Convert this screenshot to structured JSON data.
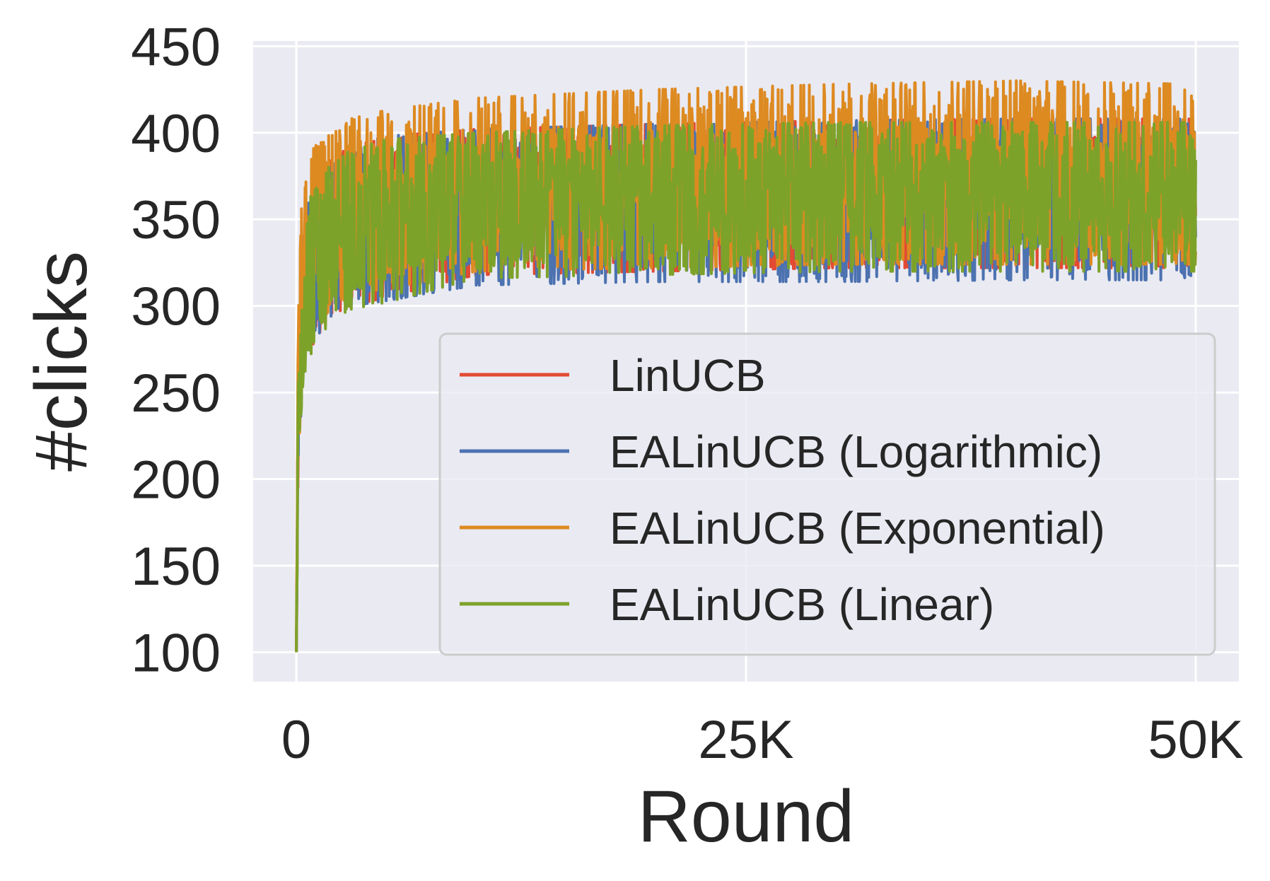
{
  "chart_data": {
    "type": "line",
    "title": "",
    "xlabel": "Round",
    "ylabel": "#clicks",
    "xlim": [
      -2400,
      52400
    ],
    "ylim": [
      83,
      453
    ],
    "xticks": [
      0,
      25000,
      50000
    ],
    "xtick_labels": [
      "0",
      "25K",
      "50K"
    ],
    "yticks": [
      100,
      150,
      200,
      250,
      300,
      350,
      400,
      450
    ],
    "ytick_labels": [
      "100",
      "150",
      "200",
      "250",
      "300",
      "350",
      "400",
      "450"
    ],
    "grid": true,
    "legend_position": "lower-right",
    "series": [
      {
        "name": "LinUCB",
        "color": "#e24a33",
        "x": [
          0,
          100,
          300,
          500,
          1000,
          2000,
          3000,
          5000,
          10000,
          20000,
          30000,
          40000,
          50000
        ],
        "mean": [
          100,
          240,
          290,
          315,
          330,
          342,
          350,
          355,
          358,
          362,
          362,
          363,
          363
        ],
        "lower": [
          100,
          200,
          250,
          265,
          280,
          295,
          300,
          305,
          318,
          320,
          322,
          322,
          322
        ],
        "upper": [
          100,
          270,
          330,
          350,
          375,
          385,
          392,
          398,
          402,
          405,
          407,
          408,
          408
        ]
      },
      {
        "name": "EALinUCB (Logarithmic)",
        "color": "#4c72b0",
        "x": [
          0,
          100,
          300,
          500,
          1000,
          2000,
          3000,
          5000,
          10000,
          20000,
          30000,
          40000,
          50000
        ],
        "mean": [
          100,
          240,
          290,
          315,
          330,
          342,
          350,
          355,
          358,
          362,
          362,
          363,
          363
        ],
        "lower": [
          100,
          200,
          250,
          265,
          280,
          295,
          300,
          303,
          312,
          314,
          314,
          315,
          315
        ],
        "upper": [
          100,
          270,
          330,
          350,
          375,
          385,
          392,
          398,
          402,
          405,
          407,
          408,
          408
        ]
      },
      {
        "name": "EALinUCB (Exponential)",
        "color": "#dd8a21",
        "x": [
          0,
          100,
          300,
          500,
          1000,
          2000,
          3000,
          5000,
          10000,
          20000,
          30000,
          40000,
          50000
        ],
        "mean": [
          100,
          245,
          300,
          325,
          340,
          352,
          358,
          362,
          366,
          368,
          368,
          369,
          369
        ],
        "lower": [
          100,
          205,
          255,
          270,
          285,
          300,
          305,
          310,
          320,
          322,
          324,
          324,
          324
        ],
        "upper": [
          100,
          290,
          360,
          380,
          392,
          400,
          408,
          413,
          420,
          425,
          428,
          430,
          428
        ]
      },
      {
        "name": "EALinUCB (Linear)",
        "color": "#7da22a",
        "x": [
          0,
          100,
          300,
          500,
          1000,
          2000,
          3000,
          5000,
          10000,
          20000,
          30000,
          40000,
          50000
        ],
        "mean": [
          100,
          240,
          290,
          315,
          330,
          342,
          350,
          355,
          358,
          362,
          362,
          363,
          363
        ],
        "lower": [
          100,
          200,
          245,
          262,
          278,
          292,
          298,
          302,
          316,
          318,
          320,
          320,
          320
        ],
        "upper": [
          100,
          268,
          328,
          350,
          372,
          382,
          390,
          396,
          400,
          404,
          406,
          406,
          406
        ]
      }
    ]
  }
}
